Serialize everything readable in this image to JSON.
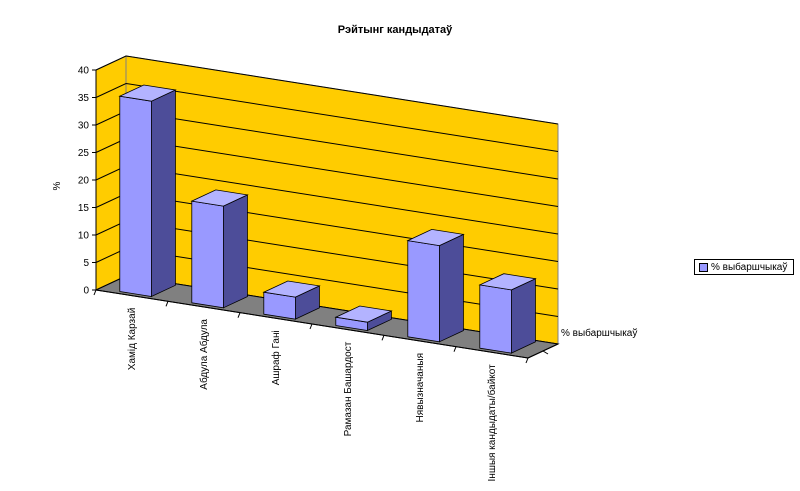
{
  "chart_data": {
    "type": "bar",
    "title": "Рэйтынг кандыдатаў",
    "ylabel": "%",
    "depth_label": "% выбаршчыкаў",
    "ylim": [
      0,
      40
    ],
    "yticks": [
      0,
      5,
      10,
      15,
      20,
      25,
      30,
      35,
      40
    ],
    "categories": [
      "Хамід Карзай",
      "Абдула Абдула",
      "Ашраф Гані",
      "Рамазан Башардост",
      "Нявызначаныя",
      "Іншыя кандыдаты/байкот"
    ],
    "series": [
      {
        "name": "% выбаршчыкаў",
        "values": [
          35.5,
          18.5,
          4,
          1.5,
          17.5,
          11.5
        ]
      }
    ],
    "legend_position": "right",
    "grid": true,
    "colors": {
      "wall": "#ffcc00",
      "floor": "#808080",
      "bar_front": "#9999ff",
      "bar_top": "#b3b3ff",
      "bar_side": "#4d4d99"
    }
  }
}
